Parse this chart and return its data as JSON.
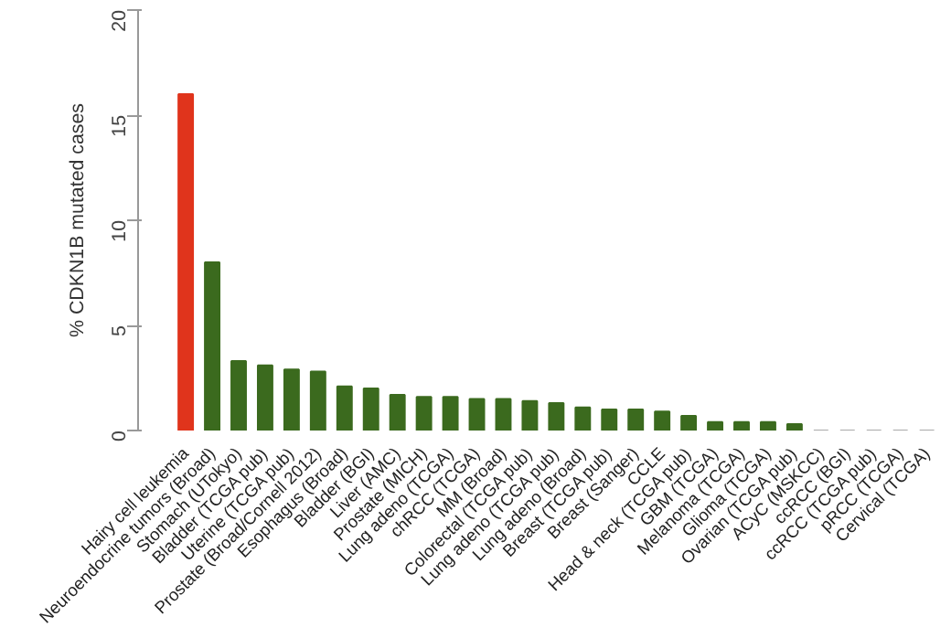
{
  "chart_data": {
    "type": "bar",
    "ylabel": "% CDKN1B mutated cases",
    "categories": [
      "Hairy cell leukemia",
      "Neuroendocrine tumors (Broad)",
      "Stomach (UTokyo)",
      "Bladder (TCGA pub)",
      "Uterine (TCGA pub)",
      "Prostate (Broad/Cornell 2012)",
      "Esophagus (Broad)",
      "Bladder (BGI)",
      "Liver (AMC)",
      "Prostate (MICH)",
      "Lung adeno (TCGA)",
      "chRCC (TCGA)",
      "MM (Broad)",
      "Colorectal (TCGA pub)",
      "Lung adeno (TCGA pub)",
      "Lung adeno (Broad)",
      "Breast (TCGA pub)",
      "Breast (Sanger)",
      "CCLE",
      "Head & neck (TCGA pub)",
      "GBM (TCGA)",
      "Melanoma (TCGA)",
      "Glioma (TCGA)",
      "Ovarian (TCGA pub)",
      "ACyC (MSKCC)",
      "ccRCC (BGI)",
      "ccRCC (TCGA pub)",
      "pRCC (TCGA)",
      "Cervical (TCGA)"
    ],
    "values": [
      16.0,
      8.0,
      3.3,
      3.1,
      2.9,
      2.8,
      2.1,
      2.0,
      1.7,
      1.6,
      1.6,
      1.5,
      1.5,
      1.4,
      1.3,
      1.1,
      1.0,
      1.0,
      0.9,
      0.7,
      0.4,
      0.4,
      0.4,
      0.3,
      0,
      0,
      0,
      0,
      0
    ],
    "colors": [
      "#e0341c",
      "#3b6a1e",
      "#3b6a1e",
      "#3b6a1e",
      "#3b6a1e",
      "#3b6a1e",
      "#3b6a1e",
      "#3b6a1e",
      "#3b6a1e",
      "#3b6a1e",
      "#3b6a1e",
      "#3b6a1e",
      "#3b6a1e",
      "#3b6a1e",
      "#3b6a1e",
      "#3b6a1e",
      "#3b6a1e",
      "#3b6a1e",
      "#3b6a1e",
      "#3b6a1e",
      "#3b6a1e",
      "#3b6a1e",
      "#3b6a1e",
      "#3b6a1e",
      "#aaaaaa",
      "#aaaaaa",
      "#aaaaaa",
      "#aaaaaa",
      "#aaaaaa"
    ],
    "ylim": [
      0,
      20
    ],
    "yticks": [
      0,
      5,
      10,
      15,
      20
    ],
    "grid": false
  }
}
